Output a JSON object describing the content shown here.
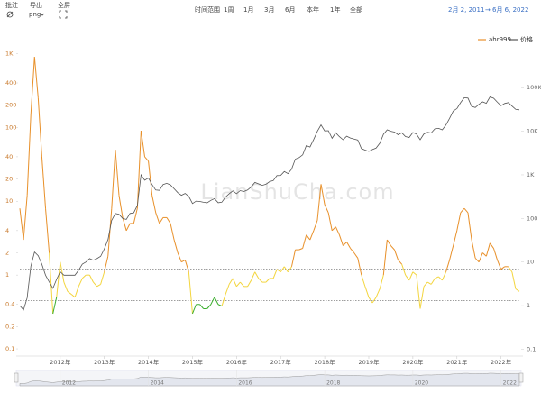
{
  "toolbar": {
    "annotate": "批注",
    "export": "导出",
    "format": "png",
    "fullscreen": "全屏",
    "range_label": "时间范围",
    "ranges": [
      "1周",
      "1月",
      "3月",
      "6月",
      "本年",
      "1年",
      "全部"
    ],
    "from": "2月 2, 2011",
    "to": "6月 6, 2022"
  },
  "chart_data": {
    "type": "line",
    "watermark": "LianShuCha.com",
    "x": [
      "2011-02",
      "2011-03",
      "2011-04",
      "2011-05",
      "2011-06",
      "2011-07",
      "2011-08",
      "2011-09",
      "2011-10",
      "2011-11",
      "2011-12",
      "2012-01",
      "2012-02",
      "2012-03",
      "2012-04",
      "2012-05",
      "2012-06",
      "2012-07",
      "2012-08",
      "2012-09",
      "2012-10",
      "2012-11",
      "2012-12",
      "2013-01",
      "2013-02",
      "2013-03",
      "2013-04",
      "2013-05",
      "2013-06",
      "2013-07",
      "2013-08",
      "2013-09",
      "2013-10",
      "2013-11",
      "2013-12",
      "2014-01",
      "2014-02",
      "2014-03",
      "2014-04",
      "2014-05",
      "2014-06",
      "2014-07",
      "2014-08",
      "2014-09",
      "2014-10",
      "2014-11",
      "2014-12",
      "2015-01",
      "2015-02",
      "2015-03",
      "2015-04",
      "2015-05",
      "2015-06",
      "2015-07",
      "2015-08",
      "2015-09",
      "2015-10",
      "2015-11",
      "2015-12",
      "2016-01",
      "2016-02",
      "2016-03",
      "2016-04",
      "2016-05",
      "2016-06",
      "2016-07",
      "2016-08",
      "2016-09",
      "2016-10",
      "2016-11",
      "2016-12",
      "2017-01",
      "2017-02",
      "2017-03",
      "2017-04",
      "2017-05",
      "2017-06",
      "2017-07",
      "2017-08",
      "2017-09",
      "2017-10",
      "2017-11",
      "2017-12",
      "2018-01",
      "2018-02",
      "2018-03",
      "2018-04",
      "2018-05",
      "2018-06",
      "2018-07",
      "2018-08",
      "2018-09",
      "2018-10",
      "2018-11",
      "2018-12",
      "2019-01",
      "2019-02",
      "2019-03",
      "2019-04",
      "2019-05",
      "2019-06",
      "2019-07",
      "2019-08",
      "2019-09",
      "2019-10",
      "2019-11",
      "2019-12",
      "2020-01",
      "2020-02",
      "2020-03",
      "2020-04",
      "2020-05",
      "2020-06",
      "2020-07",
      "2020-08",
      "2020-09",
      "2020-10",
      "2020-11",
      "2020-12",
      "2021-01",
      "2021-02",
      "2021-03",
      "2021-04",
      "2021-05",
      "2021-06",
      "2021-07",
      "2021-08",
      "2021-09",
      "2021-10",
      "2021-11",
      "2021-12",
      "2022-01",
      "2022-02",
      "2022-03",
      "2022-04",
      "2022-05",
      "2022-06"
    ],
    "xlim": [
      "2011-02",
      "2022-06"
    ],
    "xticks": [
      {
        "value": "2012-01",
        "label": "2012年"
      },
      {
        "value": "2013-01",
        "label": "2013年"
      },
      {
        "value": "2014-01",
        "label": "2014年"
      },
      {
        "value": "2015-01",
        "label": "2015年"
      },
      {
        "value": "2016-01",
        "label": "2016年"
      },
      {
        "value": "2017-01",
        "label": "2017年"
      },
      {
        "value": "2018-01",
        "label": "2018年"
      },
      {
        "value": "2019-01",
        "label": "2019年"
      },
      {
        "value": "2020-01",
        "label": "2020年"
      },
      {
        "value": "2021-01",
        "label": "2021年"
      },
      {
        "value": "2022-01",
        "label": "2022年"
      }
    ],
    "navigator_xticks": [
      {
        "value": "2012-01",
        "label": "2012"
      },
      {
        "value": "2014-01",
        "label": "2014"
      },
      {
        "value": "2016-01",
        "label": "2016"
      },
      {
        "value": "2018-01",
        "label": "2018"
      },
      {
        "value": "2020-01",
        "label": "2020"
      },
      {
        "value": "2022-01",
        "label": "2022"
      }
    ],
    "log_scale": true,
    "ylim": [
      0.08,
      1500
    ],
    "yticks": [
      0.1,
      0.2,
      0.4,
      1,
      2,
      4,
      10,
      20,
      40,
      100,
      200,
      400,
      {
        "value": 1000,
        "label": "1K"
      }
    ],
    "y2lim": [
      0.07,
      1200000
    ],
    "y2ticks": [
      0.1,
      1,
      10,
      100,
      {
        "value": 1000,
        "label": "1K"
      },
      {
        "value": 10000,
        "label": "10K"
      },
      {
        "value": 100000,
        "label": "100K"
      }
    ],
    "bands": [
      {
        "max": 0.45,
        "color": "#3bae2e"
      },
      {
        "max": 1.2,
        "color": "#f3d53e"
      },
      {
        "color": "#e8902a"
      }
    ],
    "legend": "top-right",
    "series": [
      {
        "name": "ahr999",
        "color": "#e8902a",
        "values": [
          8,
          3,
          12,
          150,
          900,
          250,
          40,
          8,
          2,
          0.3,
          0.5,
          1.5,
          0.8,
          0.6,
          0.55,
          0.5,
          0.7,
          0.9,
          1.0,
          1.0,
          0.8,
          0.7,
          0.75,
          1.1,
          1.8,
          8,
          50,
          12,
          6,
          4,
          5,
          5,
          8,
          90,
          40,
          35,
          12,
          7,
          5,
          6,
          6,
          5,
          3,
          2,
          1.5,
          1.6,
          1.1,
          0.3,
          0.4,
          0.4,
          0.35,
          0.35,
          0.4,
          0.5,
          0.4,
          0.38,
          0.55,
          0.75,
          0.9,
          0.7,
          0.8,
          0.7,
          0.7,
          0.85,
          1.1,
          0.9,
          0.8,
          0.8,
          0.9,
          0.9,
          1.2,
          1.1,
          1.3,
          1.1,
          1.3,
          2.2,
          2.2,
          2.3,
          3.5,
          3,
          4,
          5.5,
          17,
          9,
          7,
          4,
          4.5,
          3.5,
          2.5,
          2.8,
          2.3,
          2,
          1.7,
          1,
          0.7,
          0.5,
          0.42,
          0.5,
          0.65,
          1,
          3,
          2.5,
          2.2,
          1.6,
          1.4,
          1,
          0.85,
          1.1,
          1,
          0.35,
          0.7,
          0.8,
          0.75,
          0.9,
          0.95,
          0.85,
          1.1,
          1.6,
          2.5,
          4,
          7,
          8,
          7,
          3,
          1.7,
          1.5,
          2,
          1.8,
          2.7,
          2.3,
          1.6,
          1.2,
          1.3,
          1.3,
          1.1,
          0.65,
          0.6
        ]
      },
      {
        "name": "价格",
        "color": "#555555",
        "axis": "y2",
        "values": [
          1,
          0.8,
          1.5,
          8,
          17,
          14,
          9,
          5,
          3.5,
          2.5,
          4,
          6,
          5,
          5,
          5,
          5,
          6.5,
          9,
          10,
          12,
          11,
          12,
          13.5,
          20,
          33,
          90,
          130,
          125,
          100,
          95,
          130,
          135,
          200,
          1000,
          750,
          850,
          600,
          450,
          440,
          600,
          640,
          590,
          480,
          390,
          340,
          375,
          320,
          220,
          250,
          245,
          235,
          230,
          260,
          285,
          230,
          236,
          310,
          370,
          430,
          370,
          435,
          415,
          450,
          530,
          670,
          620,
          575,
          608,
          700,
          740,
          960,
          970,
          1190,
          1070,
          1350,
          2300,
          2480,
          2875,
          4700,
          4340,
          6470,
          10000,
          14000,
          10200,
          10300,
          6900,
          9200,
          7500,
          6400,
          7700,
          7000,
          6600,
          6300,
          4000,
          3700,
          3450,
          3800,
          4100,
          5300,
          8500,
          10800,
          10000,
          9600,
          8300,
          9200,
          7550,
          7200,
          9350,
          8600,
          6400,
          8650,
          9450,
          9150,
          11350,
          11650,
          10800,
          13800,
          19700,
          29000,
          33100,
          45200,
          58800,
          57700,
          37300,
          35000,
          41500,
          47100,
          43800,
          61300,
          57000,
          46300,
          38500,
          43200,
          45500,
          37700,
          31800,
          31000
        ]
      }
    ]
  }
}
